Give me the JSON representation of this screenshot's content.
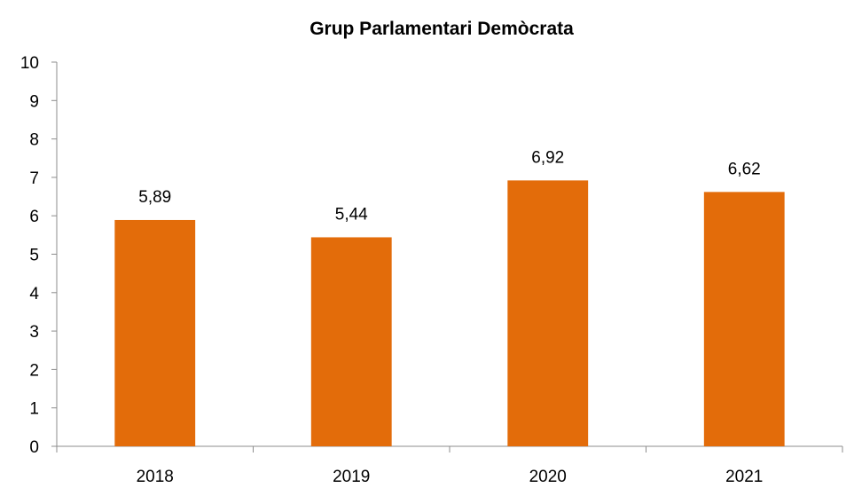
{
  "chart_data": {
    "type": "bar",
    "title": "Grup Parlamentari Demòcrata",
    "categories": [
      "2018",
      "2019",
      "2020",
      "2021"
    ],
    "values": [
      5.89,
      5.44,
      6.92,
      6.62
    ],
    "value_labels": [
      "5,89",
      "5,44",
      "6,92",
      "6,62"
    ],
    "ylim": [
      0,
      10
    ],
    "yticks": [
      0,
      1,
      2,
      3,
      4,
      5,
      6,
      7,
      8,
      9,
      10
    ],
    "xlabel": "",
    "ylabel": "",
    "grid": false,
    "legend": "none",
    "bar_color": "#E36C0A"
  }
}
